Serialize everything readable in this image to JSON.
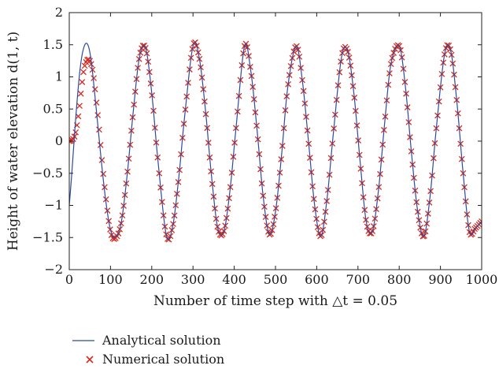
{
  "chart_data": {
    "type": "line",
    "title": "",
    "xlabel": "Number of time step with △t = 0.05",
    "ylabel": "Height of water elevation d(1, t)",
    "xlim": [
      0,
      1000
    ],
    "ylim": [
      -2,
      2
    ],
    "xticks": [
      "0",
      "100",
      "200",
      "300",
      "400",
      "500",
      "600",
      "700",
      "800",
      "900",
      "1000"
    ],
    "yticks": [
      "2",
      "1.5",
      "1",
      "0.5",
      "0",
      "−0.5",
      "−1",
      "−1.5",
      "−2"
    ],
    "grid": false,
    "legend_position": "below",
    "series": [
      {
        "name": "Analytical solution",
        "style": "line",
        "color": "#2c4aa0",
        "x": [
          0,
          5,
          10,
          15,
          20,
          25,
          30,
          35,
          40,
          45,
          50,
          55,
          60,
          70,
          80,
          90,
          100,
          110,
          125,
          140,
          155,
          170,
          185,
          200,
          215,
          235,
          250,
          265,
          280,
          300,
          315,
          330,
          345,
          360,
          375,
          390,
          405,
          425,
          440,
          455,
          470,
          485,
          500,
          515,
          530,
          550,
          565,
          580,
          595,
          610,
          625,
          640,
          660,
          675,
          690,
          705,
          720,
          735,
          750,
          765,
          780,
          800,
          815,
          830,
          845,
          860,
          875,
          890,
          910,
          925,
          940,
          955,
          970,
          985,
          1000
        ],
        "y": [
          -1.0,
          -0.6,
          -0.15,
          0.3,
          0.7,
          1.05,
          1.3,
          1.45,
          1.52,
          1.5,
          1.38,
          1.15,
          0.85,
          0.2,
          -0.45,
          -1.0,
          -1.38,
          -1.5,
          -1.3,
          -0.55,
          0.45,
          1.3,
          1.45,
          0.75,
          -0.3,
          -1.45,
          -1.35,
          -0.6,
          0.4,
          1.48,
          1.3,
          0.5,
          -0.55,
          -1.35,
          -1.4,
          -0.75,
          0.25,
          1.48,
          1.1,
          0.2,
          -0.85,
          -1.45,
          -1.1,
          -0.2,
          0.85,
          1.48,
          0.95,
          0.0,
          -1.0,
          -1.48,
          -0.9,
          0.1,
          1.3,
          1.4,
          0.75,
          -0.3,
          -1.25,
          -1.4,
          -0.75,
          0.3,
          1.2,
          1.48,
          0.85,
          -0.2,
          -1.1,
          -1.48,
          -0.85,
          0.2,
          1.35,
          1.4,
          0.6,
          -0.5,
          -1.4,
          -1.35,
          -1.25
        ]
      },
      {
        "name": "Numerical solution",
        "style": "marker-x",
        "color": "#d62a1e",
        "x": [
          0,
          5,
          10,
          15,
          20,
          25,
          30,
          35,
          40,
          45,
          50,
          55,
          60,
          70,
          80,
          90,
          100,
          110,
          125,
          140,
          155,
          170,
          185,
          200,
          215,
          235,
          250,
          265,
          280,
          300,
          315,
          330,
          345,
          360,
          375,
          390,
          405,
          425,
          440,
          455,
          470,
          485,
          500,
          515,
          530,
          550,
          565,
          580,
          595,
          610,
          625,
          640,
          660,
          675,
          690,
          705,
          720,
          735,
          750,
          765,
          780,
          800,
          815,
          830,
          845,
          860,
          875,
          890,
          910,
          925,
          940,
          955,
          970,
          985,
          1000
        ],
        "y": [
          0.0,
          0.01,
          0.04,
          0.12,
          0.3,
          0.55,
          0.85,
          1.1,
          1.22,
          1.27,
          1.25,
          1.15,
          0.95,
          0.35,
          -0.35,
          -0.95,
          -1.4,
          -1.52,
          -1.3,
          -0.55,
          0.45,
          1.3,
          1.45,
          0.75,
          -0.3,
          -1.45,
          -1.35,
          -0.6,
          0.4,
          1.48,
          1.3,
          0.5,
          -0.55,
          -1.35,
          -1.4,
          -0.75,
          0.25,
          1.48,
          1.1,
          0.2,
          -0.85,
          -1.45,
          -1.1,
          -0.2,
          0.85,
          1.48,
          0.95,
          0.0,
          -1.0,
          -1.48,
          -0.9,
          0.1,
          1.3,
          1.4,
          0.75,
          -0.3,
          -1.25,
          -1.4,
          -0.75,
          0.3,
          1.2,
          1.48,
          0.85,
          -0.2,
          -1.1,
          -1.48,
          -0.85,
          0.2,
          1.35,
          1.4,
          0.6,
          -0.5,
          -1.4,
          -1.35,
          -1.25
        ]
      }
    ]
  }
}
